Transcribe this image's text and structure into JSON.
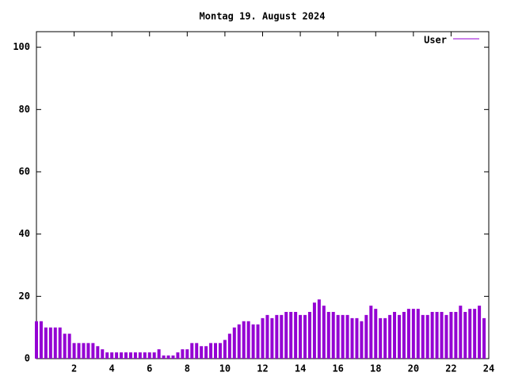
{
  "chart_data": {
    "type": "impulse",
    "title": "Montag 19. August 2024",
    "series": [
      {
        "name": "User",
        "color": "#9400d3",
        "x": [
          0,
          0.25,
          0.5,
          0.75,
          1,
          1.25,
          1.5,
          1.75,
          2,
          2.25,
          2.5,
          2.75,
          3,
          3.25,
          3.5,
          3.75,
          4,
          4.25,
          4.5,
          4.75,
          5,
          5.25,
          5.5,
          5.75,
          6,
          6.25,
          6.5,
          6.75,
          7,
          7.25,
          7.5,
          7.75,
          8,
          8.25,
          8.5,
          8.75,
          9,
          9.25,
          9.5,
          9.75,
          10,
          10.25,
          10.5,
          10.75,
          11,
          11.25,
          11.5,
          11.75,
          12,
          12.25,
          12.5,
          12.75,
          13,
          13.25,
          13.5,
          13.75,
          14,
          14.25,
          14.5,
          14.75,
          15,
          15.25,
          15.5,
          15.75,
          16,
          16.25,
          16.5,
          16.75,
          17,
          17.25,
          17.5,
          17.75,
          18,
          18.25,
          18.5,
          18.75,
          19,
          19.25,
          19.5,
          19.75,
          20,
          20.25,
          20.5,
          20.75,
          21,
          21.25,
          21.5,
          21.75,
          22,
          22.25,
          22.5,
          22.75,
          23,
          23.25,
          23.5,
          23.75
        ],
        "values": [
          12,
          12,
          10,
          10,
          10,
          10,
          8,
          8,
          5,
          5,
          5,
          5,
          5,
          4,
          3,
          2,
          2,
          2,
          2,
          2,
          2,
          2,
          2,
          2,
          2,
          2,
          3,
          1,
          1,
          1,
          2,
          3,
          3,
          5,
          5,
          4,
          4,
          5,
          5,
          5,
          6,
          8,
          10,
          11,
          12,
          12,
          11,
          11,
          13,
          14,
          13,
          14,
          14,
          15,
          15,
          15,
          14,
          14,
          15,
          18,
          19,
          17,
          15,
          15,
          14,
          14,
          14,
          13,
          13,
          12,
          14,
          17,
          16,
          13,
          13,
          14,
          15,
          14,
          15,
          16,
          16,
          16,
          14,
          14,
          15,
          15,
          15,
          14,
          15,
          15,
          17,
          15,
          16,
          16,
          17,
          13
        ]
      }
    ],
    "xlim": [
      0,
      24
    ],
    "xticks": [
      2,
      4,
      6,
      8,
      10,
      12,
      14,
      16,
      18,
      20,
      22,
      24
    ],
    "ylim": [
      0,
      105
    ],
    "yticks": [
      0,
      20,
      40,
      60,
      80,
      100
    ]
  }
}
